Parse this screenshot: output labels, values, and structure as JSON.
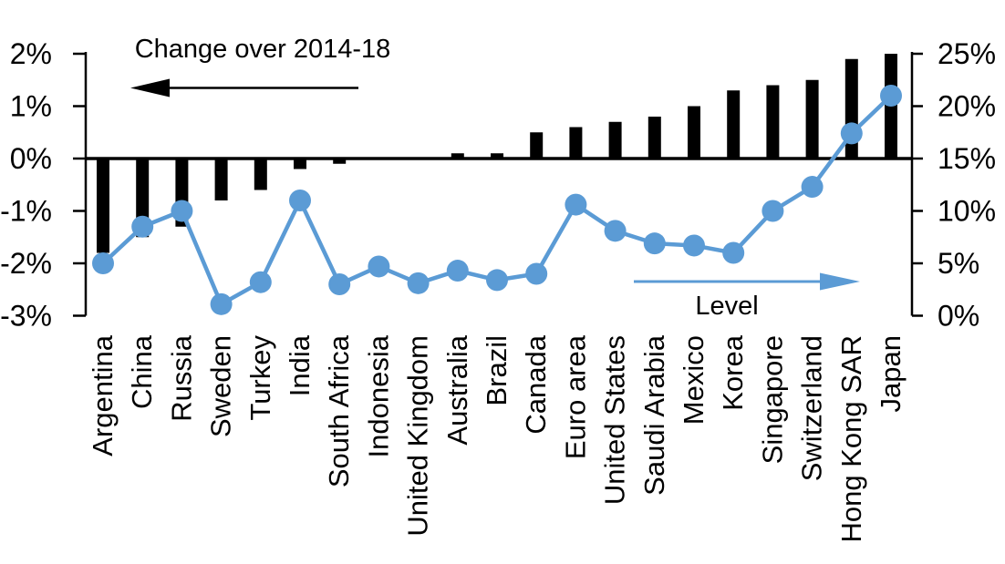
{
  "chart_data": {
    "type": "combo",
    "title": "",
    "categories": [
      "Argentina",
      "China",
      "Russia",
      "Sweden",
      "Turkey",
      "India",
      "South Africa",
      "Indonesia",
      "United Kingdom",
      "Australia",
      "Brazil",
      "Canada",
      "Euro area",
      "United States",
      "Saudi Arabia",
      "Mexico",
      "Korea",
      "Singapore",
      "Switzerland",
      "Hong Kong SAR",
      "Japan"
    ],
    "series": [
      {
        "name": "Change over 2014-18",
        "type": "bar",
        "axis": "left",
        "unit": "%",
        "color": "#000000",
        "values": [
          -1.8,
          -1.5,
          -1.3,
          -0.8,
          -0.6,
          -0.2,
          -0.1,
          0,
          0,
          0.1,
          0.1,
          0.5,
          0.6,
          0.7,
          0.8,
          1.0,
          1.3,
          1.4,
          1.5,
          1.9,
          2.0
        ]
      },
      {
        "name": "Level",
        "type": "line",
        "axis": "right",
        "unit": "%",
        "color": "#5B9BD5",
        "values": [
          5.0,
          8.5,
          10.0,
          1.1,
          3.2,
          11.0,
          3.0,
          4.7,
          3.1,
          4.3,
          3.4,
          4.0,
          10.6,
          8.1,
          6.9,
          6.7,
          6.0,
          10.0,
          12.3,
          17.4,
          21.0
        ]
      }
    ],
    "left_axis": {
      "tick_labels": [
        "2%",
        "1%",
        "0%",
        "-1%",
        "-2%",
        "-3%"
      ],
      "tick_values": [
        2,
        1,
        0,
        -1,
        -2,
        -3
      ],
      "range": [
        -3,
        2
      ]
    },
    "right_axis": {
      "tick_labels": [
        "25%",
        "20%",
        "15%",
        "10%",
        "5%",
        "0%"
      ],
      "tick_values": [
        25,
        20,
        15,
        10,
        5,
        0
      ],
      "range": [
        0,
        25
      ]
    },
    "annotations": {
      "bar_label": "Change over 2014-18",
      "bar_arrow_direction": "left",
      "line_label": "Level",
      "line_arrow_direction": "right"
    },
    "colors": {
      "bar": "#000000",
      "line": "#5B9BD5",
      "text": "#000000",
      "background": "#FFFFFF"
    },
    "grid": "off",
    "legend": "none"
  }
}
